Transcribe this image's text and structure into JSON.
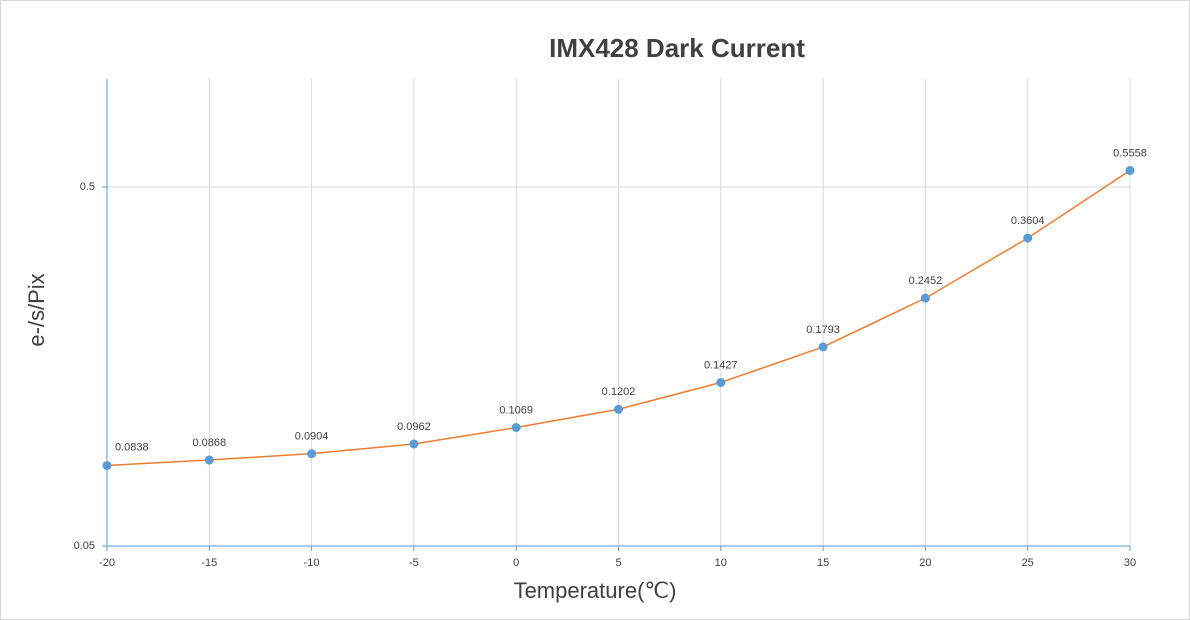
{
  "chart_data": {
    "type": "line",
    "title": "IMX428 Dark Current",
    "x_label": "Temperature(℃)",
    "y_label": "e-/s/Pix",
    "x": [
      -20,
      -15,
      -10,
      -5,
      0,
      5,
      10,
      15,
      20,
      25,
      30
    ],
    "values": [
      0.0838,
      0.0868,
      0.0904,
      0.0962,
      0.1069,
      0.1202,
      0.1427,
      0.1793,
      0.2452,
      0.3604,
      0.5558
    ],
    "color": "#ed7d31",
    "marker_color": "#5b9bd5",
    "xlim": [
      -20,
      30
    ],
    "xticks": [
      -20,
      -15,
      -10,
      -5,
      0,
      5,
      10,
      15,
      20,
      25,
      30
    ],
    "ylim": [
      0.05,
      1
    ],
    "yticks": [
      0.05,
      0.5
    ],
    "ylog": true,
    "grid": true
  }
}
